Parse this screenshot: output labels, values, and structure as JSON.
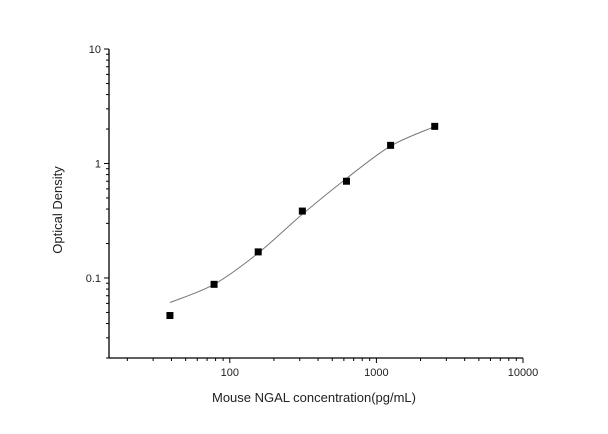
{
  "chart_data": {
    "type": "scatter",
    "title": "",
    "xlabel": "Mouse NGAL concentration(pg/mL)",
    "ylabel": "Optical Density",
    "xscale": "log",
    "yscale": "log",
    "xlim": [
      15,
      10000
    ],
    "ylim": [
      0.02,
      10
    ],
    "xticks": [
      100,
      1000,
      10000
    ],
    "xtick_labels": [
      "100",
      "1000",
      "10000"
    ],
    "yticks": [
      0.1,
      1,
      10
    ],
    "ytick_labels": [
      "0.1",
      "1",
      "10"
    ],
    "grid": false,
    "legend": "none",
    "series": [
      {
        "marker": "square",
        "color": "#000000",
        "x": [
          39.06,
          78.13,
          156.25,
          312.5,
          625,
          1250,
          2500
        ],
        "y": [
          0.047,
          0.088,
          0.169,
          0.384,
          0.7,
          1.44,
          2.11
        ]
      }
    ],
    "fit_curve": {
      "color": "#777777",
      "x": [
        39.06,
        78.13,
        156.25,
        312.5,
        625,
        1250,
        2500
      ],
      "y": [
        0.061,
        0.088,
        0.165,
        0.36,
        0.74,
        1.42,
        2.1
      ]
    }
  }
}
